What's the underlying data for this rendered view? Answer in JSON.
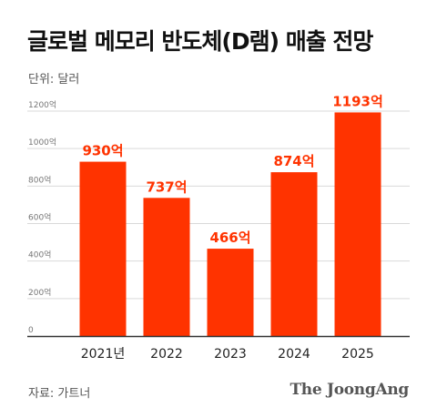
{
  "title": "글로벌 메모리 반도체(D램) 매출 전망",
  "unit_label": "단위: 달러",
  "source": "자료: 가트너",
  "logo": "The JoongAng",
  "colors": {
    "bar": "#ff3300",
    "value_label": "#ff3300",
    "grid": "#d9d9d9",
    "axis": "#333333"
  },
  "chart_data": {
    "type": "bar",
    "categories": [
      "2021년",
      "2022",
      "2023",
      "2024",
      "2025"
    ],
    "values": [
      930,
      737,
      466,
      874,
      1193
    ],
    "value_labels": [
      "930억",
      "737억",
      "466억",
      "874억",
      "1193억"
    ],
    "y_ticks": [
      "0",
      "200억",
      "400억",
      "600억",
      "800억",
      "1000억",
      "1200억"
    ],
    "ylim": [
      0,
      1200
    ],
    "grid": true
  }
}
